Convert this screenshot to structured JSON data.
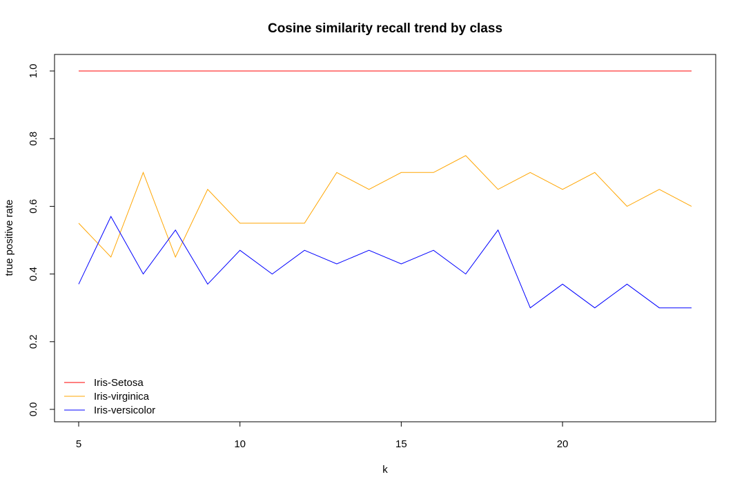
{
  "chart_data": {
    "type": "line",
    "title": "Cosine similarity recall trend by class",
    "xlabel": "k",
    "ylabel": "true positive rate",
    "x": [
      5,
      6,
      7,
      8,
      9,
      10,
      11,
      12,
      13,
      14,
      15,
      16,
      17,
      18,
      19,
      20,
      21,
      22,
      23,
      24
    ],
    "xlim": [
      5,
      24
    ],
    "ylim": [
      0,
      1
    ],
    "x_ticks": [
      5,
      10,
      15,
      20
    ],
    "x_tick_labels": [
      "5",
      "10",
      "15",
      "20"
    ],
    "y_ticks": [
      0,
      0.2,
      0.4,
      0.6,
      0.8,
      1
    ],
    "y_tick_labels": [
      "0.0",
      "0.2",
      "0.4",
      "0.6",
      "0.8",
      "1.0"
    ],
    "grid": false,
    "legend_position": "bottom-left",
    "series": [
      {
        "name": "Iris-Setosa",
        "color": "#ff0000",
        "values": [
          1,
          1,
          1,
          1,
          1,
          1,
          1,
          1,
          1,
          1,
          1,
          1,
          1,
          1,
          1,
          1,
          1,
          1,
          1,
          1
        ]
      },
      {
        "name": "Iris-virginica",
        "color": "#ffa500",
        "values": [
          0.55,
          0.45,
          0.7,
          0.45,
          0.65,
          0.55,
          0.55,
          0.55,
          0.7,
          0.65,
          0.7,
          0.7,
          0.75,
          0.65,
          0.7,
          0.65,
          0.7,
          0.6,
          0.65,
          0.6
        ]
      },
      {
        "name": "Iris-versicolor",
        "color": "#0000ff",
        "values": [
          0.37,
          0.57,
          0.4,
          0.53,
          0.37,
          0.47,
          0.4,
          0.47,
          0.43,
          0.47,
          0.43,
          0.47,
          0.4,
          0.53,
          0.3,
          0.37,
          0.3,
          0.37,
          0.3,
          0.3
        ]
      }
    ]
  }
}
